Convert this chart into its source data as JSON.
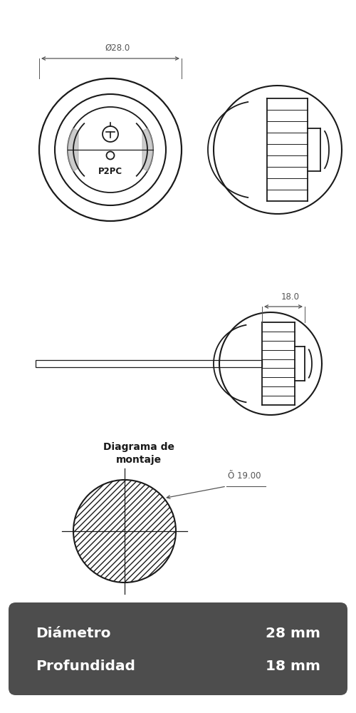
{
  "bg_color": "#ffffff",
  "line_color": "#1a1a1a",
  "line_width": 1.3,
  "dim_color": "#555555",
  "label_diam28": "Ø28.0",
  "label_diam18": "18.0",
  "label_diam19": "Õ 19.00",
  "label_P2PC": "P2PC",
  "montaje_title": "Diagrama de\nmontaje",
  "spec_bg": "#4d4d4d",
  "spec_text_color": "#ffffff",
  "spec_label1": "Diámetro",
  "spec_val1": "28 mm",
  "spec_label2": "Profundidad",
  "spec_val2": "18 mm"
}
